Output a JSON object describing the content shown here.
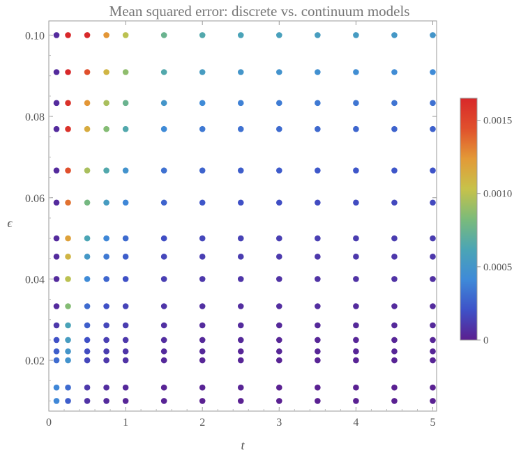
{
  "chart_data": {
    "type": "scatter",
    "title": "Mean squared error: discrete vs. continuum models",
    "xlabel": "t",
    "ylabel": "ϵ",
    "xlim": [
      0,
      5.05
    ],
    "ylim": [
      0.0075,
      0.1035
    ],
    "x_ticks": [
      0,
      1,
      2,
      3,
      4,
      5
    ],
    "x_tick_labels": [
      "0",
      "1",
      "2",
      "3",
      "4",
      "5"
    ],
    "y_ticks": [
      0.02,
      0.04,
      0.06,
      0.08,
      0.1
    ],
    "y_tick_labels": [
      "0.02",
      "0.04",
      "0.06",
      "0.08",
      "0.10"
    ],
    "t_values": [
      0.1,
      0.25,
      0.5,
      0.75,
      1,
      1.5,
      2,
      2.5,
      3,
      3.5,
      4,
      4.5,
      5
    ],
    "eps_values": [
      0.1,
      0.0909,
      0.0833,
      0.0769,
      0.0667,
      0.0588,
      0.05,
      0.0455,
      0.04,
      0.0333,
      0.0286,
      0.025,
      0.0222,
      0.02,
      0.0133,
      0.01
    ],
    "mse": [
      [
        5e-05,
        0.00165,
        0.00165,
        0.00125,
        0.001,
        0.00075,
        0.00065,
        0.0006,
        0.00058,
        0.00056,
        0.00054,
        0.00052,
        0.0005
      ],
      [
        5e-05,
        0.00165,
        0.00145,
        0.0011,
        0.00088,
        0.00065,
        0.00055,
        0.0005,
        0.00048,
        0.00046,
        0.00044,
        0.00043,
        0.00042
      ],
      [
        5e-05,
        0.0016,
        0.00125,
        0.00095,
        0.00075,
        0.0005,
        0.00042,
        0.00038,
        0.00036,
        0.00035,
        0.00034,
        0.00033,
        0.00032
      ],
      [
        5e-05,
        0.0016,
        0.00115,
        0.00085,
        0.00065,
        0.00042,
        0.00035,
        0.00032,
        0.0003,
        0.00029,
        0.00028,
        0.00027,
        0.00026
      ],
      [
        5e-05,
        0.00145,
        0.00095,
        0.00065,
        0.00048,
        0.00032,
        0.00027,
        0.00025,
        0.00024,
        0.00023,
        0.00022,
        0.00022,
        0.00021
      ],
      [
        5e-05,
        0.00135,
        0.0008,
        0.00055,
        0.0004,
        0.00027,
        0.00022,
        0.0002,
        0.00019,
        0.00018,
        0.00018,
        0.00017,
        0.00017
      ],
      [
        5e-05,
        0.0012,
        0.00062,
        0.0004,
        0.0003,
        0.00019,
        0.00016,
        0.00014,
        0.00013,
        0.00013,
        0.00012,
        0.00012,
        0.00012
      ],
      [
        5e-05,
        0.0011,
        0.00052,
        0.00035,
        0.00025,
        0.00016,
        0.00013,
        0.00012,
        0.00011,
        0.0001,
        0.0001,
        0.0001,
        0.0001
      ],
      [
        5e-05,
        0.001,
        0.00042,
        0.00028,
        0.0002,
        0.00013,
        0.0001,
        9e-05,
        8e-05,
        8e-05,
        8e-05,
        8e-05,
        7e-05
      ],
      [
        5e-05,
        0.00085,
        0.0003,
        0.0002,
        0.00015,
        9e-05,
        7e-05,
        6e-05,
        6e-05,
        6e-05,
        5e-05,
        5e-05,
        5e-05
      ],
      [
        0.0001,
        0.0006,
        0.00025,
        0.00016,
        0.00012,
        7e-05,
        5e-05,
        5e-05,
        4e-05,
        4e-05,
        4e-05,
        4e-05,
        4e-05
      ],
      [
        0.0002,
        0.00055,
        0.0002,
        0.00013,
        0.0001,
        6e-05,
        4e-05,
        4e-05,
        3e-05,
        3e-05,
        3e-05,
        3e-05,
        3e-05
      ],
      [
        0.00025,
        0.0005,
        0.00018,
        0.00012,
        9e-05,
        5e-05,
        4e-05,
        3e-05,
        3e-05,
        3e-05,
        3e-05,
        3e-05,
        3e-05
      ],
      [
        0.0003,
        0.00048,
        0.00016,
        0.0001,
        8e-05,
        4e-05,
        3e-05,
        3e-05,
        2e-05,
        2e-05,
        2e-05,
        2e-05,
        2e-05
      ],
      [
        0.0004,
        0.0003,
        0.0001,
        6e-05,
        4e-05,
        2e-05,
        2e-05,
        2e-05,
        1e-05,
        1e-05,
        1e-05,
        1e-05,
        1e-05
      ],
      [
        0.0004,
        0.00025,
        8e-05,
        5e-05,
        3e-05,
        2e-05,
        1e-05,
        1e-05,
        1e-05,
        1e-05,
        1e-05,
        1e-05,
        1e-05
      ]
    ],
    "colorbar": {
      "min": 0,
      "max": 0.00165,
      "ticks": [
        0,
        0.0005,
        0.001,
        0.0015
      ],
      "tick_labels": [
        "0",
        "0.0005",
        "0.0010",
        "0.0015"
      ],
      "colors": [
        "#5b1f8f",
        "#3e52c8",
        "#3f8ad8",
        "#4ba5b5",
        "#7bbb7a",
        "#c7c24a",
        "#e39a37",
        "#e0502c",
        "#d8282a"
      ]
    },
    "grid": false,
    "legend": "colorbar-right"
  }
}
